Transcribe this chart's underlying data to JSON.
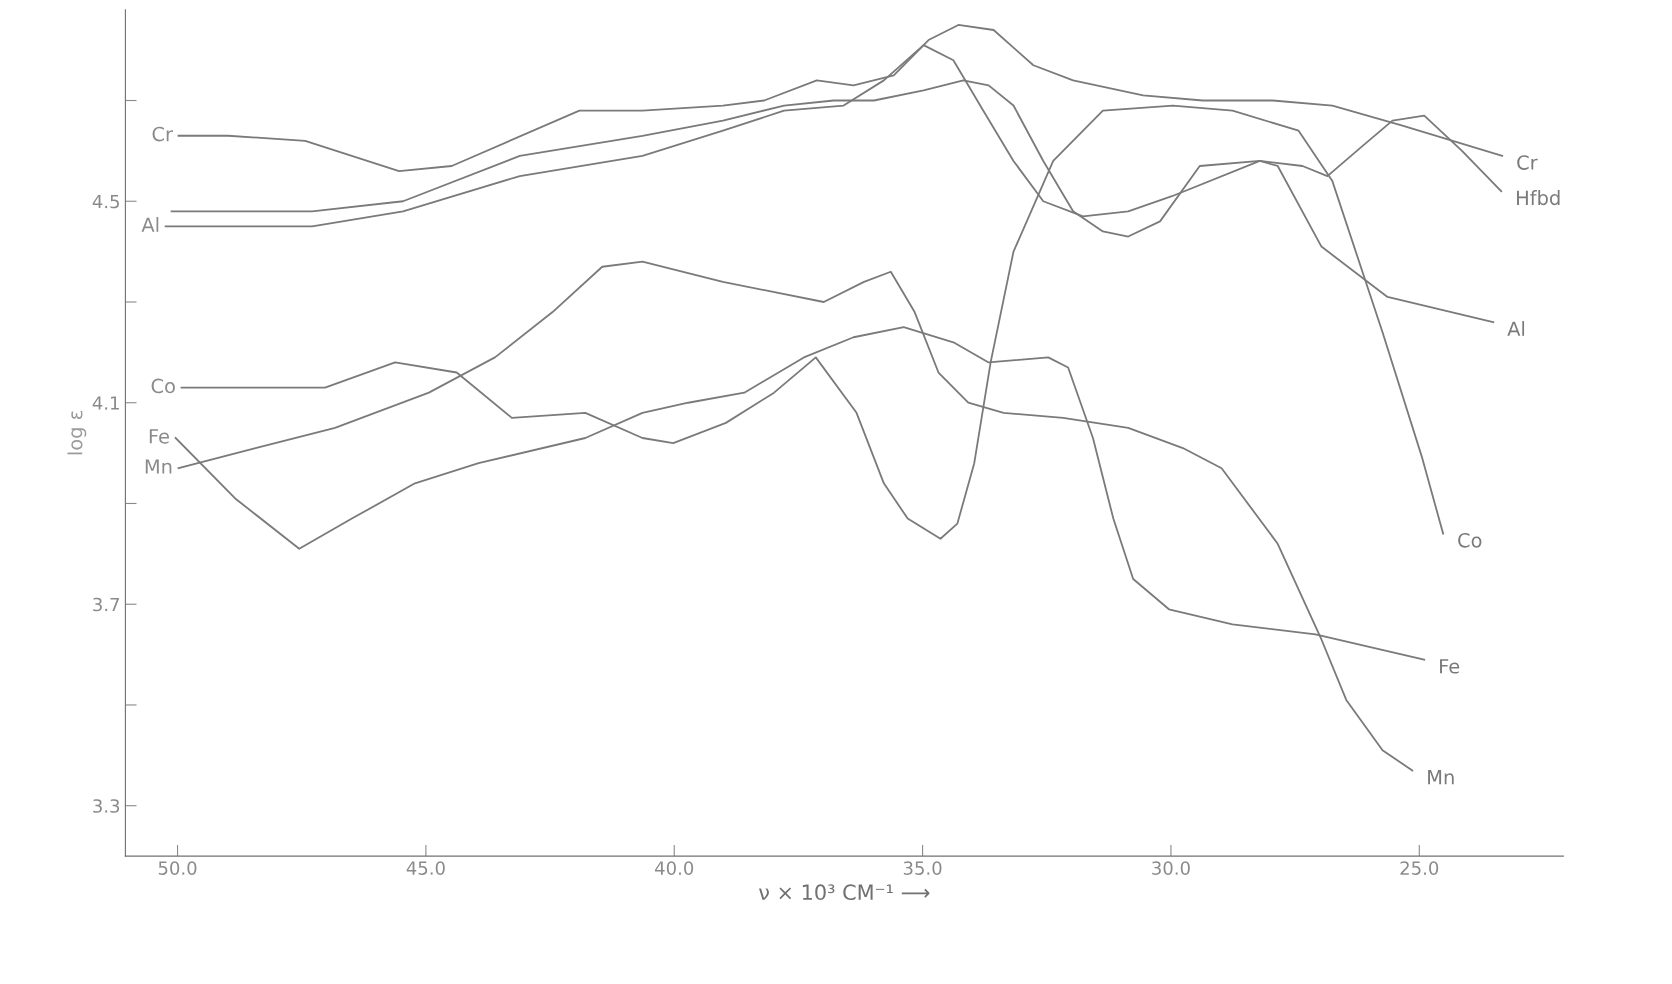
{
  "chart_data": {
    "type": "line",
    "xlabel": "ν × 10³ CM⁻¹ ⟶",
    "ylabel": "log ε",
    "xlim": [
      51.05,
      22.1
    ],
    "ylim": [
      3.2,
      4.88
    ],
    "xticks": [
      {
        "value": 50,
        "label": "50.0"
      },
      {
        "value": 45,
        "label": "45.0"
      },
      {
        "value": 40,
        "label": "40.0"
      },
      {
        "value": 35,
        "label": "35.0"
      },
      {
        "value": 30,
        "label": "30.0"
      },
      {
        "value": 25,
        "label": "25.0"
      }
    ],
    "yticks": [
      3.3,
      {
        "value": 3.5,
        "label": null
      },
      3.7,
      {
        "value": 3.9,
        "label": null
      },
      4.1,
      {
        "value": 4.3,
        "label": null
      },
      4.5,
      {
        "value": 4.7,
        "label": null
      }
    ],
    "grid": false,
    "legend": false,
    "marker": "none",
    "line_style": "solid",
    "series": [
      {
        "name": "Cr",
        "color": "#7a7a7a",
        "x": [
          49.98,
          48.98,
          47.43,
          45.54,
          44.48,
          41.91,
          40.64,
          39.02,
          38.19,
          37.13,
          36.39,
          35.58,
          34.88,
          34.28,
          33.57,
          32.77,
          31.97,
          30.56,
          29.36,
          27.95,
          26.75,
          25.34,
          23.33
        ],
        "values": [
          4.63,
          4.63,
          4.62,
          4.56,
          4.57,
          4.68,
          4.68,
          4.69,
          4.7,
          4.74,
          4.73,
          4.75,
          4.82,
          4.85,
          4.84,
          4.77,
          4.74,
          4.71,
          4.7,
          4.7,
          4.69,
          4.65,
          4.59
        ]
      },
      {
        "name": "Hfbd",
        "color": "#7a7a7a",
        "x": [
          50.12,
          47.29,
          45.46,
          43.11,
          40.64,
          39.02,
          37.79,
          36.79,
          35.98,
          34.98,
          34.18,
          33.67,
          33.17,
          32.57,
          31.97,
          31.37,
          30.86,
          30.22,
          29.42,
          28.21,
          27.35,
          26.85,
          26.14,
          25.54,
          24.9,
          24.14,
          23.35
        ],
        "values": [
          4.48,
          4.48,
          4.5,
          4.59,
          4.63,
          4.66,
          4.69,
          4.7,
          4.7,
          4.72,
          4.74,
          4.73,
          4.69,
          4.58,
          4.48,
          4.44,
          4.43,
          4.46,
          4.57,
          4.58,
          4.57,
          4.55,
          4.61,
          4.66,
          4.67,
          4.6,
          4.52
        ]
      },
      {
        "name": "Al",
        "color": "#7a7a7a",
        "x": [
          50.24,
          47.29,
          45.46,
          43.11,
          40.64,
          39.02,
          37.79,
          36.59,
          35.78,
          34.98,
          34.38,
          33.78,
          33.17,
          32.57,
          31.77,
          30.86,
          29.98,
          28.21,
          27.85,
          26.97,
          25.64,
          23.51
        ],
        "values": [
          4.45,
          4.45,
          4.48,
          4.55,
          4.59,
          4.64,
          4.68,
          4.69,
          4.74,
          4.81,
          4.78,
          4.68,
          4.58,
          4.5,
          4.47,
          4.48,
          4.51,
          4.58,
          4.57,
          4.41,
          4.31,
          4.26
        ]
      },
      {
        "name": "Co",
        "color": "#7a7a7a",
        "x": [
          49.92,
          47.03,
          45.62,
          44.38,
          43.27,
          41.79,
          40.64,
          40.02,
          38.96,
          37.99,
          37.15,
          36.33,
          35.78,
          35.3,
          34.64,
          34.3,
          33.96,
          33.63,
          33.17,
          32.37,
          31.37,
          29.96,
          28.76,
          27.43,
          26.75,
          25.74,
          24.94,
          24.52
        ],
        "values": [
          4.13,
          4.13,
          4.18,
          4.16,
          4.07,
          4.08,
          4.03,
          4.02,
          4.06,
          4.12,
          4.19,
          4.08,
          3.94,
          3.87,
          3.83,
          3.86,
          3.98,
          4.18,
          4.4,
          4.58,
          4.68,
          4.69,
          4.68,
          4.64,
          4.54,
          4.24,
          3.99,
          3.84
        ]
      },
      {
        "name": "Fe",
        "color": "#7a7a7a",
        "x": [
          50.04,
          48.84,
          47.55,
          46.49,
          45.22,
          43.94,
          41.79,
          40.64,
          39.72,
          38.59,
          37.39,
          36.39,
          35.38,
          34.38,
          33.67,
          32.47,
          32.07,
          31.57,
          31.16,
          30.76,
          30.04,
          28.76,
          27.09,
          24.9
        ],
        "values": [
          4.03,
          3.91,
          3.81,
          3.87,
          3.94,
          3.98,
          4.03,
          4.08,
          4.1,
          4.12,
          4.19,
          4.23,
          4.25,
          4.22,
          4.18,
          4.19,
          4.17,
          4.03,
          3.87,
          3.75,
          3.69,
          3.66,
          3.64,
          3.59
        ]
      },
      {
        "name": "Mn",
        "color": "#7a7a7a",
        "x": [
          49.98,
          48.43,
          46.83,
          44.94,
          43.61,
          42.45,
          41.45,
          40.64,
          39.02,
          36.99,
          36.18,
          35.64,
          35.16,
          34.68,
          34.08,
          33.37,
          32.17,
          30.86,
          29.76,
          28.98,
          27.85,
          26.97,
          26.47,
          25.74,
          25.14
        ],
        "values": [
          3.97,
          4.01,
          4.05,
          4.12,
          4.19,
          4.28,
          4.37,
          4.38,
          4.34,
          4.3,
          4.34,
          4.36,
          4.28,
          4.16,
          4.1,
          4.08,
          4.07,
          4.05,
          4.01,
          3.97,
          3.82,
          3.63,
          3.51,
          3.41,
          3.37
        ]
      }
    ],
    "annotations": [
      {
        "text": "Cr",
        "x": 49.98,
        "y": 4.63
      },
      {
        "text": "Al",
        "x": 50.24,
        "y": 4.45
      },
      {
        "text": "Co",
        "x": 49.92,
        "y": 4.13
      },
      {
        "text": "Fe",
        "x": 50.04,
        "y": 4.03
      },
      {
        "text": "Mn",
        "x": 49.98,
        "y": 3.97
      }
    ]
  }
}
